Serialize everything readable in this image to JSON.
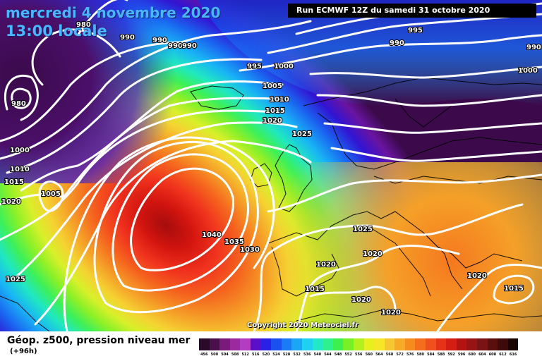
{
  "header": {
    "date_line": "mercredi 4 novembre 2020",
    "time_line": "13:00 locale",
    "run_info": "Run ECMWF 12Z du samedi 31 octobre 2020",
    "copyright": "Copyright 2020 Meteociel.fr"
  },
  "footer": {
    "title": "Géop. z500, pression niveau mer",
    "forecast_offset": "(+96h)",
    "scale_labels": [
      "456",
      "500",
      "504",
      "508",
      "512",
      "516",
      "520",
      "524",
      "528",
      "532",
      "536",
      "540",
      "544",
      "548",
      "552",
      "556",
      "560",
      "564",
      "568",
      "572",
      "576",
      "580",
      "584",
      "588",
      "592",
      "596",
      "600",
      "604",
      "608",
      "612",
      "616"
    ],
    "scale_colors": [
      "#2a0a2a",
      "#4b0f4b",
      "#7a1a7a",
      "#9b2aa0",
      "#b43cc0",
      "#5a10c8",
      "#2a20e6",
      "#1a50f0",
      "#1a7cf5",
      "#19a6f5",
      "#1fd0f0",
      "#23e8c8",
      "#2ef08c",
      "#3cf050",
      "#78f028",
      "#b4f01e",
      "#e6f01e",
      "#f5e628",
      "#f5c832",
      "#f5aa28",
      "#f58c1e",
      "#f56e1e",
      "#f0501e",
      "#e63219",
      "#d21e14",
      "#b4140f",
      "#961414",
      "#7a1414",
      "#5a0f0f",
      "#3c0a0a",
      "#1a0505"
    ]
  },
  "map": {
    "isobar_labels": [
      {
        "value": "980"
      },
      {
        "value": "990"
      },
      {
        "value": "990"
      },
      {
        "value": "990"
      },
      {
        "value": "990"
      },
      {
        "value": "980"
      },
      {
        "value": "995"
      },
      {
        "value": "1000"
      },
      {
        "value": "995"
      },
      {
        "value": "990"
      },
      {
        "value": "990"
      },
      {
        "value": "1000"
      },
      {
        "value": "1005"
      },
      {
        "value": "1010"
      },
      {
        "value": "1015"
      },
      {
        "value": "1020"
      },
      {
        "value": "1025"
      },
      {
        "value": "1000"
      },
      {
        "value": "1010"
      },
      {
        "value": "1015"
      },
      {
        "value": "1020"
      },
      {
        "value": "1005"
      },
      {
        "value": "1040"
      },
      {
        "value": "1035"
      },
      {
        "value": "1030"
      },
      {
        "value": "1025"
      },
      {
        "value": "1025"
      },
      {
        "value": "1020"
      },
      {
        "value": "1020"
      },
      {
        "value": "1015"
      },
      {
        "value": "1020"
      },
      {
        "value": "1020"
      },
      {
        "value": "1020"
      },
      {
        "value": "1015"
      }
    ]
  }
}
